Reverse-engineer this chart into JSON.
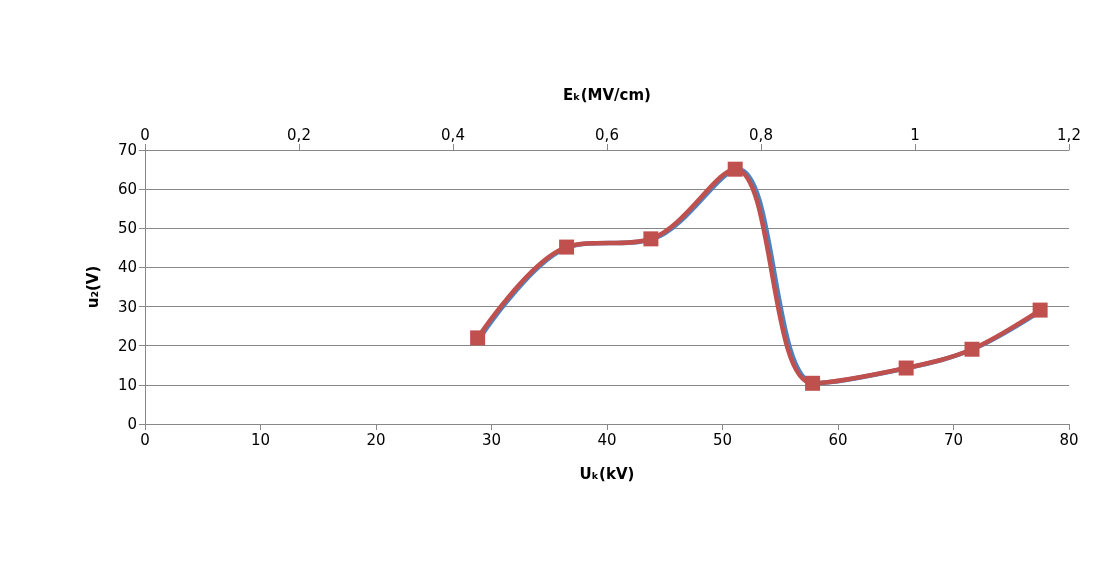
{
  "chart_data": {
    "type": "line",
    "xlabel": "Uₖ(kV)",
    "x2label": "Eₖ(MV/cm)",
    "ylabel": "u₂(V)",
    "xlim": [
      0,
      80
    ],
    "xticks": [
      0,
      10,
      20,
      30,
      40,
      50,
      60,
      70,
      80
    ],
    "x2lim": [
      0,
      1.2
    ],
    "x2ticks": [
      0,
      {
        "value": 0.2,
        "label": "0,2"
      },
      {
        "value": 0.4,
        "label": "0,4"
      },
      {
        "value": 0.6,
        "label": "0,6"
      },
      {
        "value": 0.8,
        "label": "0,8"
      },
      1,
      {
        "value": 1.2,
        "label": "1,2"
      }
    ],
    "ylim": [
      0,
      70
    ],
    "yticks": [
      0,
      10,
      20,
      30,
      40,
      50,
      60,
      70
    ],
    "grid": "y",
    "series": [
      {
        "axis": "x2",
        "color": "#4f81bd",
        "marker": "none",
        "x": [
          0.435,
          0.55,
          0.66,
          0.77,
          0.87,
          0.99,
          1.075,
          1.165
        ],
        "values": [
          22.0,
          45.2,
          47.3,
          65.1,
          10.4,
          14.3,
          19.1,
          29.1
        ]
      },
      {
        "color": "#c0504d",
        "marker": "square",
        "x": [
          28.8,
          36.5,
          43.8,
          51.1,
          57.8,
          65.9,
          71.6,
          77.5
        ],
        "values": [
          22.0,
          45.2,
          47.3,
          65.1,
          10.4,
          14.3,
          19.1,
          29.1
        ]
      }
    ]
  }
}
